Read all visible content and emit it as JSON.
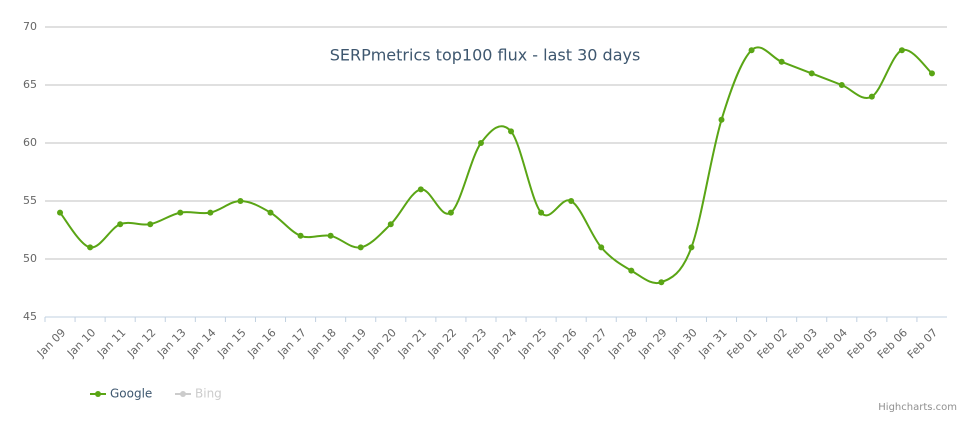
{
  "chart_data": {
    "type": "line",
    "title": "SERPmetrics top100 flux - last 30 days",
    "categories": [
      "Jan 09",
      "Jan 10",
      "Jan 11",
      "Jan 12",
      "Jan 13",
      "Jan 14",
      "Jan 15",
      "Jan 16",
      "Jan 17",
      "Jan 18",
      "Jan 19",
      "Jan 20",
      "Jan 21",
      "Jan 22",
      "Jan 23",
      "Jan 24",
      "Jan 25",
      "Jan 26",
      "Jan 27",
      "Jan 28",
      "Jan 29",
      "Jan 30",
      "Jan 31",
      "Feb 01",
      "Feb 02",
      "Feb 03",
      "Feb 04",
      "Feb 05",
      "Feb 06",
      "Feb 07"
    ],
    "series": [
      {
        "name": "Google",
        "color": "#5aa515",
        "values": [
          54,
          51,
          53,
          53,
          54,
          54,
          55,
          54,
          52,
          52,
          51,
          53,
          56,
          54,
          60,
          61,
          54,
          55,
          51,
          49,
          48,
          51,
          62,
          68,
          67,
          66,
          65,
          64,
          68,
          66
        ]
      },
      {
        "name": "Bing",
        "color": "#cccccc",
        "visible": false,
        "values": [
          null,
          null,
          null,
          null,
          null,
          null,
          null,
          null,
          null,
          null,
          null,
          null,
          null,
          null,
          null,
          null,
          null,
          null,
          null,
          null,
          null,
          null,
          null,
          null,
          null,
          null,
          null,
          null,
          null,
          null
        ]
      }
    ],
    "ylim": [
      45,
      70
    ],
    "yticks": [
      45,
      50,
      55,
      60,
      65,
      70
    ],
    "grid": true,
    "smooth": true,
    "credits": "Highcharts.com"
  }
}
